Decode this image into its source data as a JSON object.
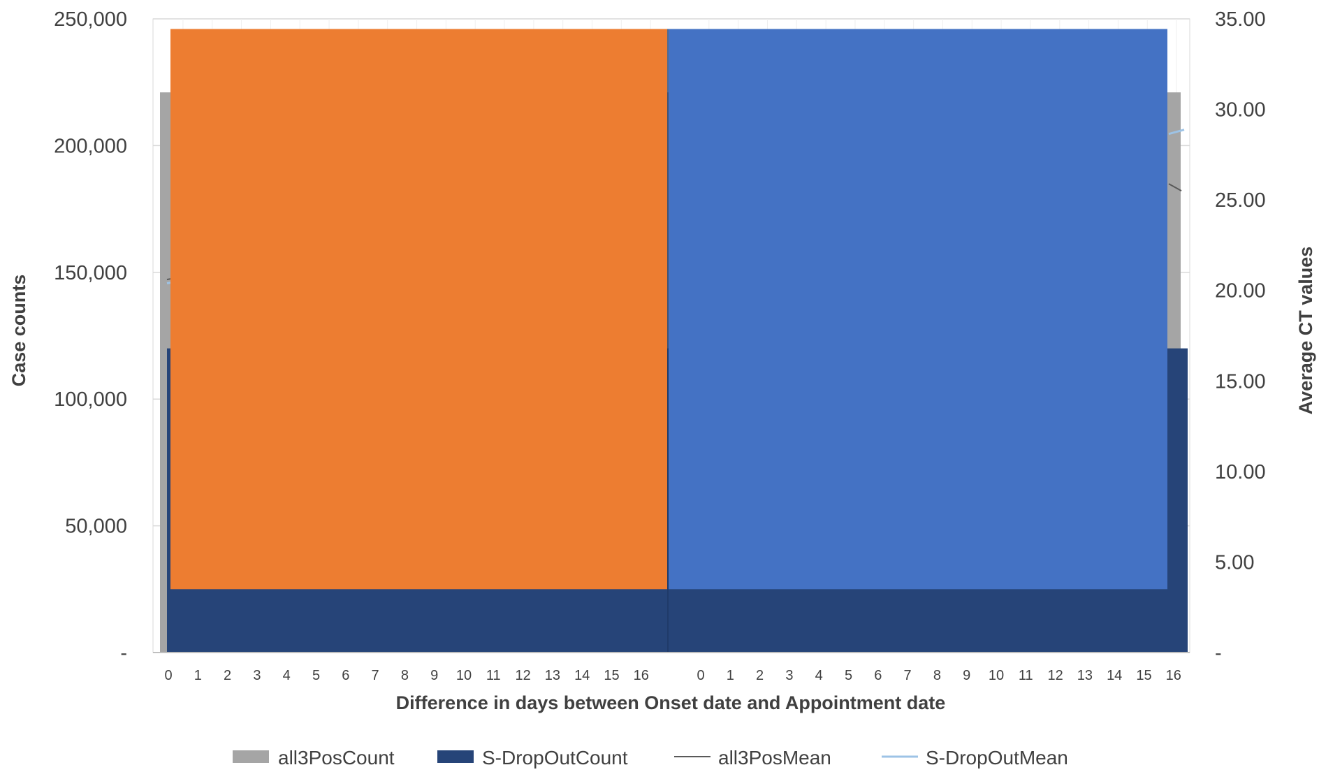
{
  "chart_data": {
    "type": "bar",
    "title": "",
    "xlabel": "Difference in days between Onset date and Appointment date",
    "ylabel_left": "Case counts",
    "ylabel_right": "Average CT values",
    "ylim_left": [
      0,
      250000
    ],
    "ylim_right": [
      0,
      35
    ],
    "y_ticks_left": [
      "-",
      "50,000",
      "100,000",
      "150,000",
      "200,000",
      "250,000"
    ],
    "y_ticks_right": [
      "-",
      "5.00",
      "10.00",
      "15.00",
      "20.00",
      "25.00",
      "30.00",
      "35.00"
    ],
    "x_groups": [
      [
        "0",
        "1",
        "2",
        "3",
        "4",
        "5",
        "6",
        "7",
        "8",
        "9",
        "10",
        "11",
        "12",
        "13",
        "14",
        "15",
        "16"
      ],
      [
        "0",
        "1",
        "2",
        "3",
        "4",
        "5",
        "6",
        "7",
        "8",
        "9",
        "10",
        "11",
        "12",
        "13",
        "14",
        "15",
        "16"
      ]
    ],
    "grid": true,
    "legend_position": "bottom",
    "legend": [
      {
        "name": "all3PosCount",
        "kind": "bar",
        "color": "#a5a5a5"
      },
      {
        "name": "S-DropOutCount",
        "kind": "bar",
        "color": "#264478"
      },
      {
        "name": "all3PosMean",
        "kind": "line",
        "color": "#595959"
      },
      {
        "name": "S-DropOutMean",
        "kind": "line",
        "color": "#9dc3e6"
      }
    ],
    "series": [
      {
        "name": "all3PosCount",
        "axis": "left",
        "visible_values": {
          "start": 221000,
          "end": 221000
        }
      },
      {
        "name": "S-DropOutCount",
        "axis": "left",
        "visible_values": {
          "start": 120000,
          "end": 120000
        }
      },
      {
        "name": "all3PosMean",
        "axis": "right",
        "visible_values": {
          "start": 20.6,
          "end": 25.5
        }
      },
      {
        "name": "S-DropOutMean",
        "axis": "right",
        "visible_values": {
          "start": 20.4,
          "end": 28.8
        }
      }
    ],
    "overlay_blocks": [
      {
        "color": "#ed7d31",
        "y_top": 246000,
        "y_bottom": 25000
      },
      {
        "color": "#4472c4",
        "y_top": 246000,
        "y_bottom": 25000
      }
    ]
  }
}
